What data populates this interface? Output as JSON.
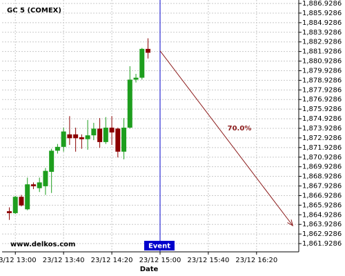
{
  "chart_data": {
    "type": "candlestick",
    "title": "GC 5 (COMEX)",
    "watermark": "www.delkos.com",
    "x_label": "Date",
    "x": [
      "23/12 12:55",
      "23/12 13:00",
      "23/12 13:05",
      "23/12 13:10",
      "23/12 13:15",
      "23/12 13:20",
      "23/12 13:25",
      "23/12 13:30",
      "23/12 13:35",
      "23/12 13:40",
      "23/12 13:45",
      "23/12 13:50",
      "23/12 13:55",
      "23/12 14:00",
      "23/12 14:05",
      "23/12 14:10",
      "23/12 14:15",
      "23/12 14:20",
      "23/12 14:25",
      "23/12 14:30",
      "23/12 14:35",
      "23/12 14:40",
      "23/12 14:45",
      "23/12 14:50"
    ],
    "open": [
      1865.3,
      1865.1,
      1866.8,
      1865.5,
      1868.1,
      1867.7,
      1867.9,
      1869.4,
      1871.6,
      1872.0,
      1873.3,
      1873.3,
      1873.0,
      1872.8,
      1873.2,
      1873.9,
      1872.5,
      1874.0,
      1873.9,
      1871.5,
      1874.0,
      1879.0,
      1879.2,
      1882.2
    ],
    "high": [
      1865.7,
      1866.9,
      1867.0,
      1868.8,
      1868.3,
      1868.8,
      1869.8,
      1871.8,
      1872.3,
      1874.0,
      1875.2,
      1874.0,
      1873.3,
      1874.8,
      1874.5,
      1875.0,
      1875.1,
      1875.2,
      1874.0,
      1875.0,
      1880.4,
      1879.6,
      1882.3,
      1883.3
    ],
    "low": [
      1864.4,
      1865.0,
      1865.8,
      1865.4,
      1867.6,
      1867.3,
      1867.0,
      1867.2,
      1871.3,
      1871.5,
      1872.2,
      1871.5,
      1871.8,
      1871.7,
      1872.7,
      1871.9,
      1872.3,
      1872.2,
      1870.9,
      1870.7,
      1873.9,
      1878.7,
      1879.0,
      1881.2
    ],
    "close": [
      1865.1,
      1866.8,
      1865.9,
      1868.1,
      1867.9,
      1868.3,
      1869.5,
      1871.6,
      1872.0,
      1873.6,
      1872.9,
      1872.9,
      1872.8,
      1873.2,
      1873.9,
      1872.5,
      1874.0,
      1873.5,
      1871.5,
      1874.0,
      1879.0,
      1879.2,
      1882.2,
      1881.8
    ],
    "up_color": "#1e9e1e",
    "down_color": "#8b0000",
    "xlim": [
      "23/12 12:49",
      "23/12 16:55"
    ],
    "xticks": [
      "23/12 13:00",
      "23/12 13:40",
      "23/12 14:20",
      "23/12 15:00",
      "23/12 15:40",
      "23/12 16:20"
    ],
    "ylim": [
      1861.07,
      1887.29
    ],
    "yticks": [
      {
        "value": 1861.9286,
        "label": "1,861.9286"
      },
      {
        "value": 1862.9286,
        "label": "1,862.9286"
      },
      {
        "value": 1863.9286,
        "label": "1,863.9286"
      },
      {
        "value": 1864.9286,
        "label": "1,864.9286"
      },
      {
        "value": 1865.9286,
        "label": "1,865.9286"
      },
      {
        "value": 1866.9286,
        "label": "1,866.9286"
      },
      {
        "value": 1867.9286,
        "label": "1,867.9286"
      },
      {
        "value": 1868.9286,
        "label": "1,868.9286"
      },
      {
        "value": 1869.9286,
        "label": "1,869.9286"
      },
      {
        "value": 1870.9286,
        "label": "1,870.9286"
      },
      {
        "value": 1871.9286,
        "label": "1,871.9286"
      },
      {
        "value": 1872.9286,
        "label": "1,872.9286"
      },
      {
        "value": 1873.9286,
        "label": "1,873.9286"
      },
      {
        "value": 1874.9286,
        "label": "1,874.9286"
      },
      {
        "value": 1875.9286,
        "label": "1,875.9286"
      },
      {
        "value": 1876.9286,
        "label": "1,876.9286"
      },
      {
        "value": 1877.9286,
        "label": "1,877.9286"
      },
      {
        "value": 1878.9286,
        "label": "1,878.9286"
      },
      {
        "value": 1879.9286,
        "label": "1,879.9286"
      },
      {
        "value": 1880.9286,
        "label": "1,880.9286"
      },
      {
        "value": 1881.9286,
        "label": "1,881.9286"
      },
      {
        "value": 1882.9286,
        "label": "1,882.9286"
      },
      {
        "value": 1883.9286,
        "label": "1,883.9286"
      },
      {
        "value": 1884.9286,
        "label": "1,884.9286"
      },
      {
        "value": 1885.9286,
        "label": "1,885.9286"
      },
      {
        "value": 1886.9286,
        "label": "1,886.9286"
      }
    ],
    "grid": true,
    "event": {
      "label": "Event",
      "x": "23/12 15:00",
      "color": "#0000cc"
    },
    "projection": {
      "label": "70.0%",
      "x": [
        "23/12 15:00",
        "23/12 16:50"
      ],
      "y": [
        1882.0,
        1863.8
      ],
      "color": "#8b1a1a"
    }
  }
}
